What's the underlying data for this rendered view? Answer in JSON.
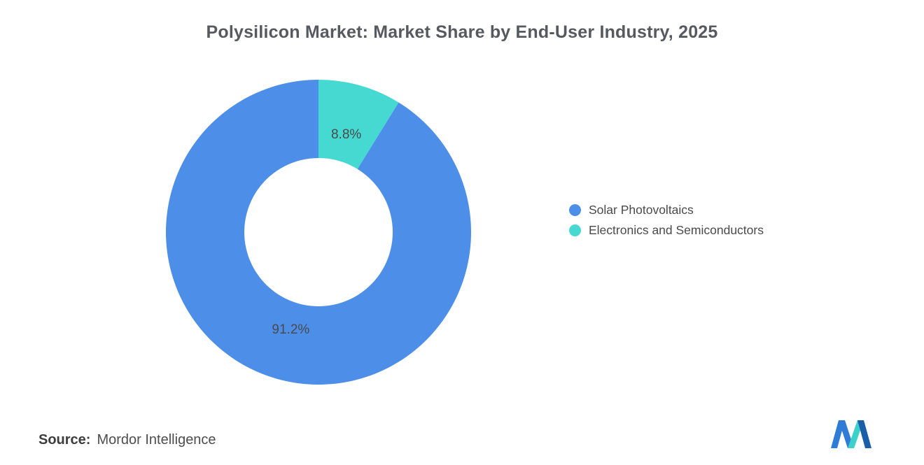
{
  "title": "Polysilicon Market: Market Share by End-User Industry, 2025",
  "source": {
    "label": "Source:",
    "value": "Mordor Intelligence"
  },
  "chart_data": {
    "type": "pie",
    "subtype": "donut",
    "title": "Polysilicon Market: Market Share by End-User Industry, 2025",
    "units": "%",
    "total": 100,
    "legend_position": "right",
    "inner_radius_ratio": 0.486,
    "label_color": "#4a4a4a",
    "label_font_size": 19,
    "slices": [
      {
        "label": "Solar Photovoltaics",
        "value": 91.2,
        "display": "91.2%",
        "color": "#4D8FE8"
      },
      {
        "label": "Electronics and Semiconductors",
        "value": 8.8,
        "display": "8.8%",
        "color": "#45D9D2"
      }
    ]
  },
  "logo": {
    "name": "mordor-intelligence-logo",
    "colors": {
      "blue": "#2E7CD6",
      "teal": "#3ED1CB",
      "dark_blue": "#1C5FA8"
    }
  }
}
